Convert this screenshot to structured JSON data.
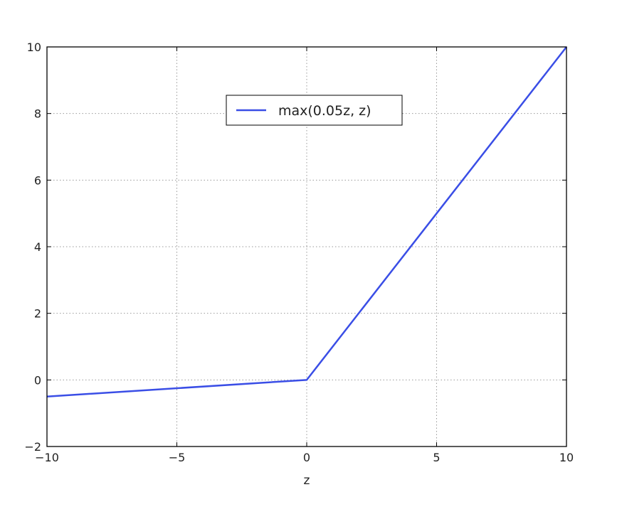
{
  "chart_data": {
    "type": "line",
    "title": "",
    "xlabel": "z",
    "ylabel": "",
    "xlim": [
      -10,
      10
    ],
    "ylim": [
      -2,
      10
    ],
    "xticks": [
      -10,
      -5,
      0,
      5,
      10
    ],
    "xtick_labels": [
      "−10",
      "−5",
      "0",
      "5",
      "10"
    ],
    "yticks": [
      -2,
      0,
      2,
      4,
      6,
      8,
      10
    ],
    "ytick_labels": [
      "−2",
      "0",
      "2",
      "4",
      "6",
      "8",
      "10"
    ],
    "grid": true,
    "legend_position": "upper-center",
    "series": [
      {
        "name": "max(0.05z, z)",
        "color": "#3a4ee6",
        "x": [
          -10,
          0,
          10
        ],
        "y": [
          -0.5,
          0,
          10
        ]
      }
    ]
  }
}
